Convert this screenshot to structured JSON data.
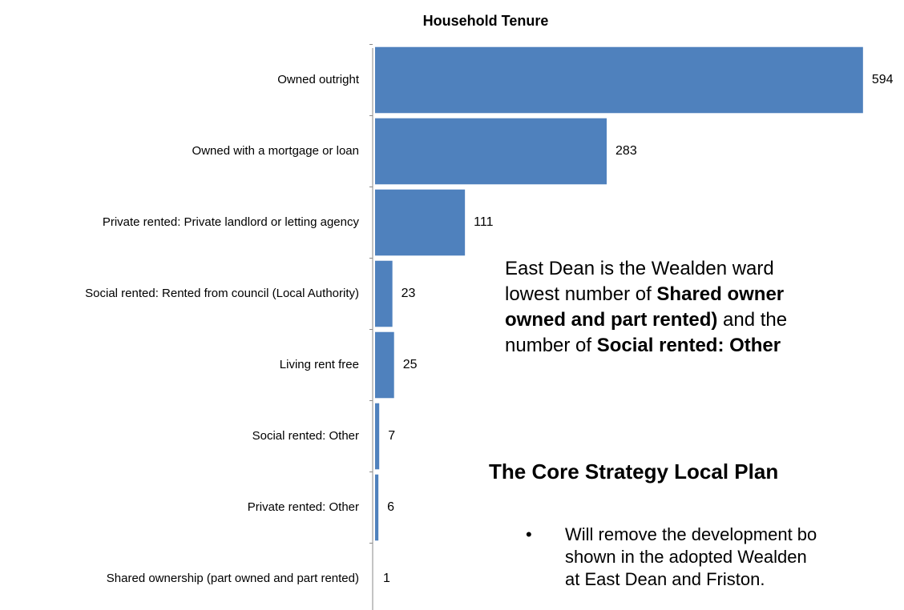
{
  "chart_data": {
    "type": "bar",
    "orientation": "horizontal",
    "title": "Household Tenure",
    "categories": [
      "Owned outright",
      "Owned with a mortgage or loan",
      "Private rented: Private landlord or letting agency",
      "Social rented: Rented from council (Local Authority)",
      "Living rent free",
      "Social rented: Other",
      "Private rented: Other",
      "Shared ownership (part owned and part rented)"
    ],
    "values": [
      594,
      283,
      111,
      23,
      25,
      7,
      6,
      1
    ],
    "color": "#4f81bd",
    "xlim": [
      0,
      600
    ]
  },
  "text_panel": {
    "paragraph": [
      [
        {
          "text": "East Dean is the Wealden ward"
        }
      ],
      [
        {
          "text": "lowest number of "
        },
        {
          "text": "Shared owner",
          "bold": true
        }
      ],
      [
        {
          "text": "owned and part rented)",
          "bold": true
        },
        {
          "text": " and the"
        }
      ],
      [
        {
          "text": "number of "
        },
        {
          "text": "Social rented: Other",
          "bold": true
        }
      ]
    ],
    "heading": "The Core Strategy Local Plan",
    "bullet_lines": [
      "Will remove the development bo",
      "shown in the adopted Wealden",
      "at East Dean and Friston."
    ]
  }
}
